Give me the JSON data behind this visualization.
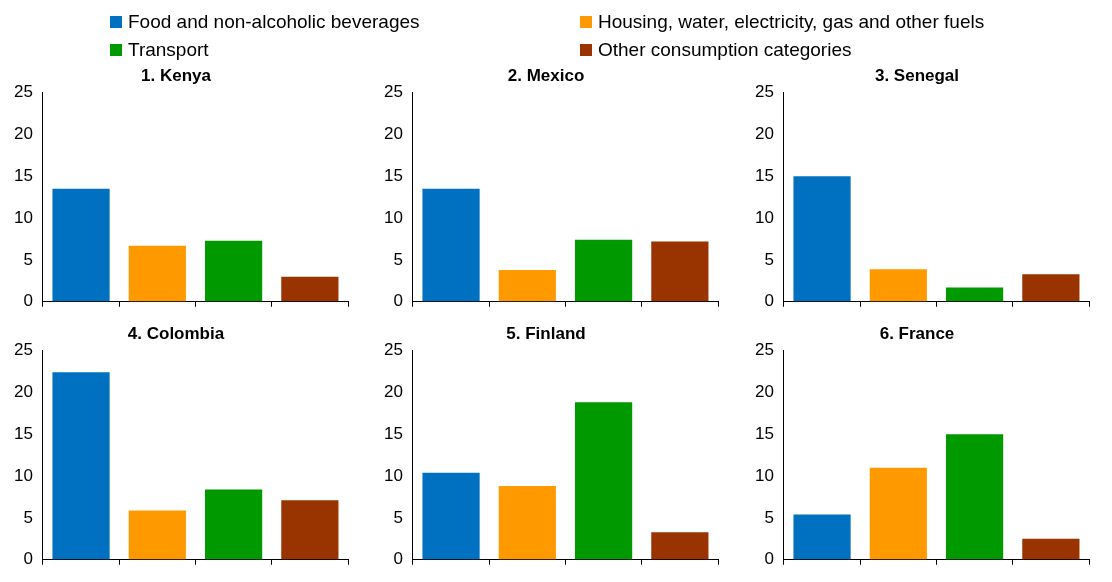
{
  "chart_data": [
    {
      "type": "bar",
      "title": "1. Kenya",
      "categories": [
        null,
        null,
        null,
        null
      ],
      "stacked": true,
      "legend": "top",
      "grid": false,
      "ylim": [
        0,
        25
      ],
      "yticks": [
        0,
        5,
        10,
        15,
        20,
        25
      ],
      "series": [
        {
          "name": "Food and non-alcoholic beverages",
          "color": "#0070c0",
          "values": [
            13.5,
            null,
            null,
            null
          ]
        },
        {
          "name": "Housing, water, electricity, gas and other fuels",
          "color": "#ff9900",
          "values": [
            null,
            6.7,
            null,
            null
          ]
        },
        {
          "name": "Transport",
          "color": "#009900",
          "values": [
            null,
            null,
            7.3,
            null
          ]
        },
        {
          "name": "Other consumption categories",
          "color": "#993300",
          "values": [
            null,
            null,
            null,
            3.0
          ]
        }
      ]
    },
    {
      "type": "bar",
      "title": "2. Mexico",
      "categories": [
        null,
        null,
        null,
        null
      ],
      "stacked": true,
      "grid": false,
      "ylim": [
        0,
        25
      ],
      "yticks": [
        0,
        5,
        10,
        15,
        20,
        25
      ],
      "series": [
        {
          "color": "#0070c0",
          "values": [
            13.5,
            null,
            null,
            null
          ]
        },
        {
          "color": "#ff9900",
          "values": [
            null,
            3.8,
            null,
            null
          ]
        },
        {
          "color": "#009900",
          "values": [
            null,
            null,
            7.4,
            null
          ]
        },
        {
          "color": "#993300",
          "values": [
            null,
            null,
            null,
            7.2
          ]
        }
      ]
    },
    {
      "type": "bar",
      "title": "3. Senegal",
      "categories": [
        null,
        null,
        null,
        null
      ],
      "stacked": true,
      "grid": false,
      "ylim": [
        0,
        25
      ],
      "yticks": [
        0,
        5,
        10,
        15,
        20,
        25
      ],
      "series": [
        {
          "color": "#0070c0",
          "values": [
            15.0,
            null,
            null,
            null
          ]
        },
        {
          "color": "#ff9900",
          "values": [
            null,
            3.9,
            null,
            null
          ]
        },
        {
          "color": "#009900",
          "values": [
            null,
            null,
            1.7,
            null
          ]
        },
        {
          "color": "#993300",
          "values": [
            null,
            null,
            null,
            3.3
          ]
        }
      ]
    },
    {
      "type": "bar",
      "title": "4. Colombia",
      "categories": [
        null,
        null,
        null,
        null
      ],
      "stacked": true,
      "grid": false,
      "ylim": [
        0,
        25
      ],
      "yticks": [
        0,
        5,
        10,
        15,
        20,
        25
      ],
      "series": [
        {
          "color": "#0070c0",
          "values": [
            22.4,
            null,
            null,
            null
          ]
        },
        {
          "color": "#ff9900",
          "values": [
            null,
            5.9,
            null,
            null
          ]
        },
        {
          "color": "#009900",
          "values": [
            null,
            null,
            8.4,
            null
          ]
        },
        {
          "color": "#993300",
          "values": [
            null,
            null,
            null,
            7.1
          ]
        }
      ]
    },
    {
      "type": "bar",
      "title": "5. Finland",
      "categories": [
        null,
        null,
        null,
        null
      ],
      "stacked": true,
      "grid": false,
      "ylim": [
        0,
        25
      ],
      "yticks": [
        0,
        5,
        10,
        15,
        20,
        25
      ],
      "series": [
        {
          "color": "#0070c0",
          "values": [
            10.4,
            null,
            null,
            null
          ]
        },
        {
          "color": "#ff9900",
          "values": [
            null,
            8.8,
            null,
            null
          ]
        },
        {
          "color": "#009900",
          "values": [
            null,
            null,
            18.8,
            null
          ]
        },
        {
          "color": "#993300",
          "values": [
            null,
            null,
            null,
            3.3
          ]
        }
      ]
    },
    {
      "type": "bar",
      "title": "6. France",
      "categories": [
        null,
        null,
        null,
        null
      ],
      "stacked": true,
      "grid": false,
      "ylim": [
        0,
        25
      ],
      "yticks": [
        0,
        5,
        10,
        15,
        20,
        25
      ],
      "series": [
        {
          "color": "#0070c0",
          "values": [
            5.4,
            null,
            null,
            null
          ]
        },
        {
          "color": "#ff9900",
          "values": [
            null,
            11.0,
            null,
            null
          ]
        },
        {
          "color": "#009900",
          "values": [
            null,
            null,
            15.0,
            null
          ]
        },
        {
          "color": "#993300",
          "values": [
            null,
            null,
            null,
            2.5
          ]
        }
      ]
    }
  ]
}
